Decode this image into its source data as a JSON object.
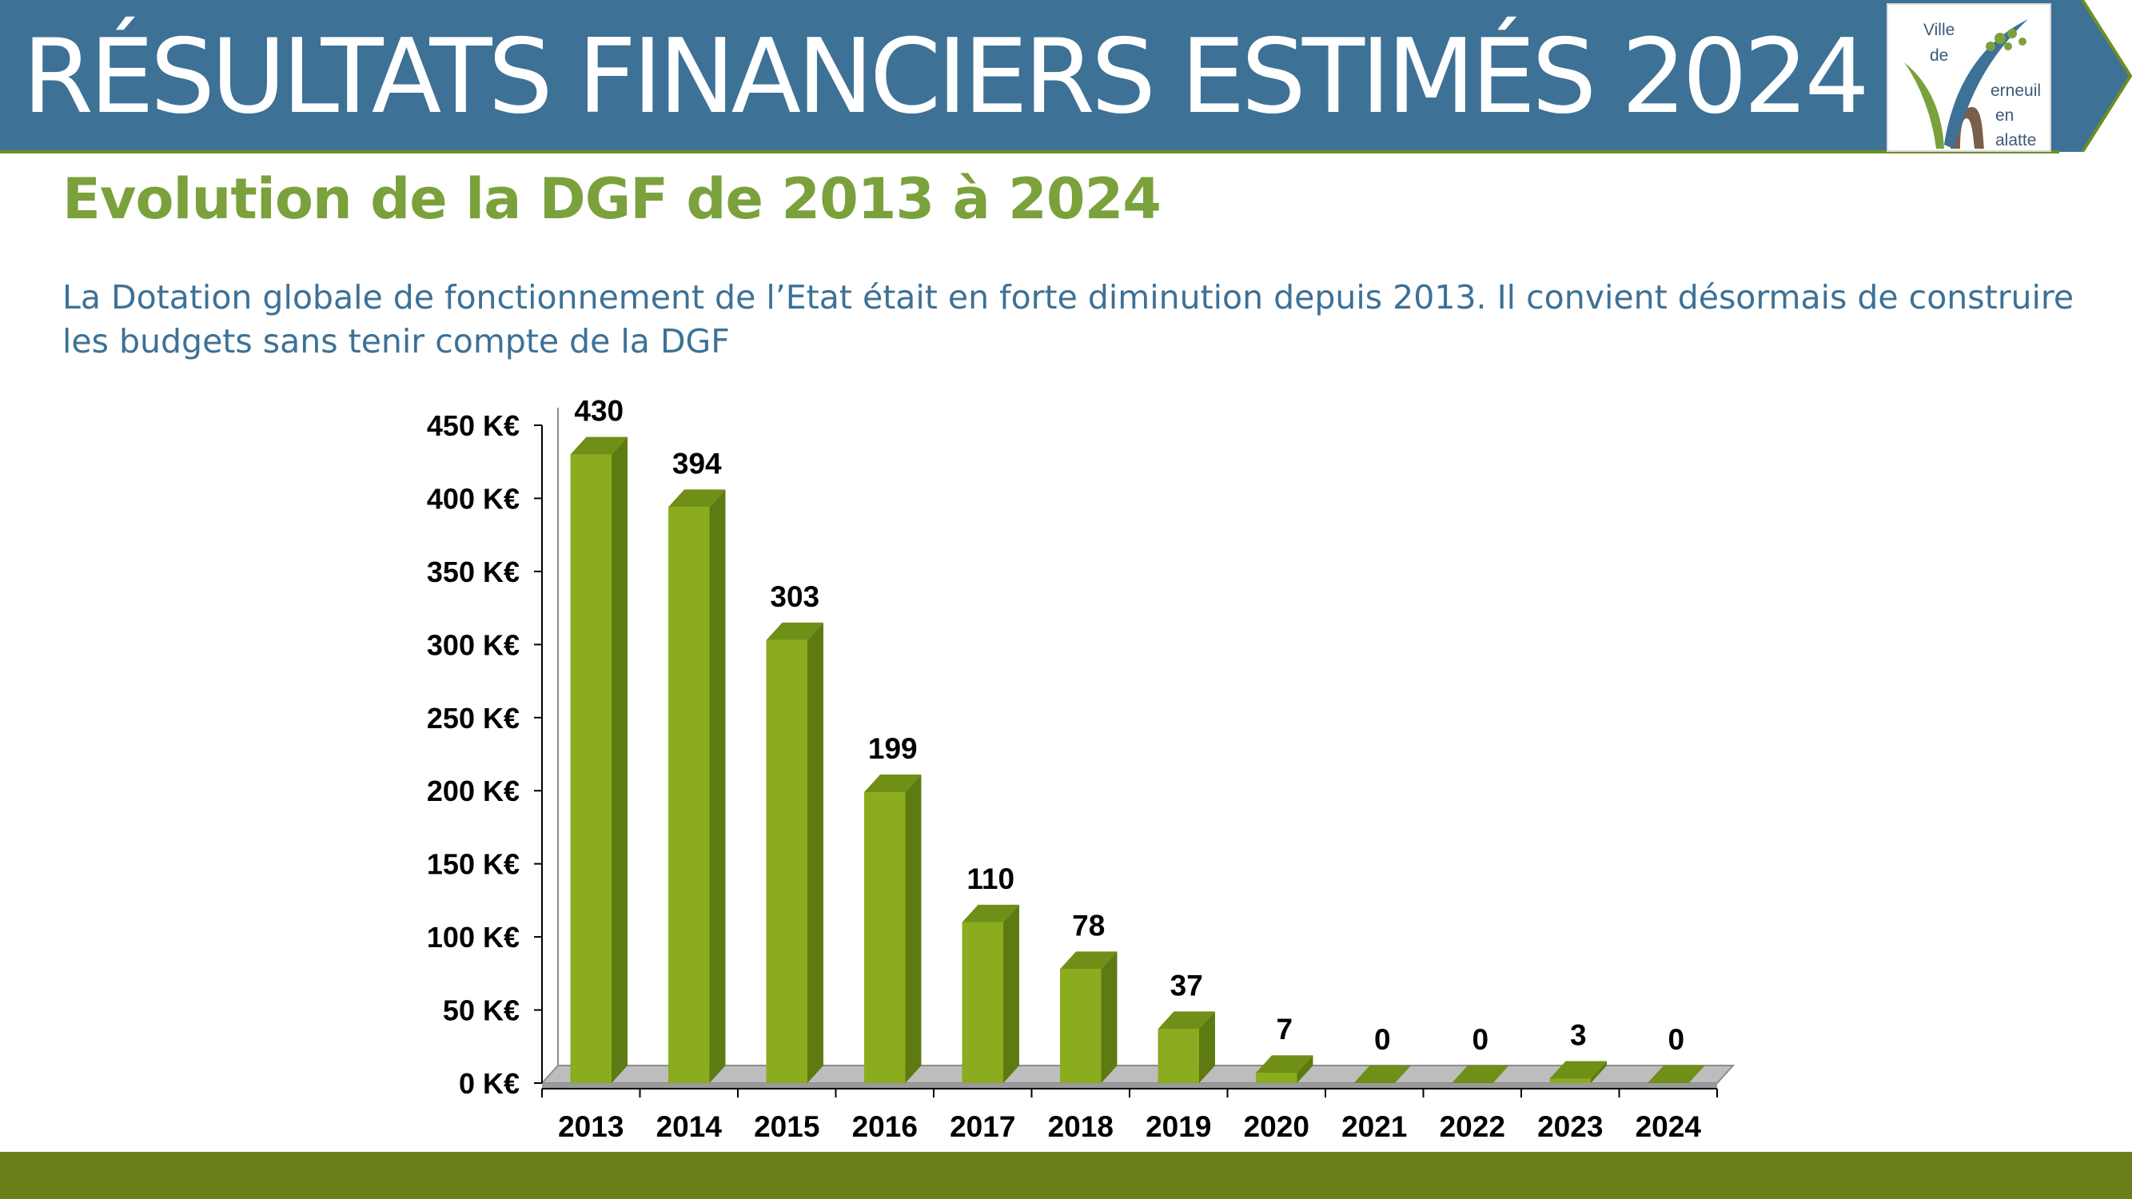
{
  "header": {
    "title": "RÉSULTATS FINANCIERS ESTIMÉS 2024",
    "logo_text": [
      "Ville",
      "de",
      "erneuil",
      "en",
      "alatte"
    ]
  },
  "subtitle": "Evolution de la DGF de 2013 à 2024",
  "description": "La Dotation globale de fonctionnement de l’Etat était en forte diminution depuis 2013. Il convient désormais de construire les budgets sans tenir compte de la DGF",
  "colors": {
    "banner": "#3d7196",
    "subtitle": "#7aa13b",
    "bar_front": "#8aac1e",
    "bar_side": "#5e7a12",
    "bar_top": "#6f8f16",
    "footer": "#6b7f18"
  },
  "chart_data": {
    "type": "bar",
    "title": "",
    "xlabel": "",
    "ylabel": "",
    "ylim": [
      0,
      450
    ],
    "y_ticks": [
      0,
      50,
      100,
      150,
      200,
      250,
      300,
      350,
      400,
      450
    ],
    "y_tick_labels": [
      "0 K€",
      "50 K€",
      "100 K€",
      "150 K€",
      "200 K€",
      "250 K€",
      "300 K€",
      "350 K€",
      "400 K€",
      "450 K€"
    ],
    "categories": [
      "2013",
      "2014",
      "2015",
      "2016",
      "2017",
      "2018",
      "2019",
      "2020",
      "2021",
      "2022",
      "2023",
      "2024"
    ],
    "values": [
      430,
      394,
      303,
      199,
      110,
      78,
      37,
      7,
      0,
      0,
      3,
      0
    ],
    "data_labels": [
      "430",
      "394",
      "303",
      "199",
      "110",
      "78",
      "37",
      "7",
      "0",
      "0",
      "3",
      "0"
    ],
    "style": "3d",
    "grid": false,
    "legend": "none"
  }
}
